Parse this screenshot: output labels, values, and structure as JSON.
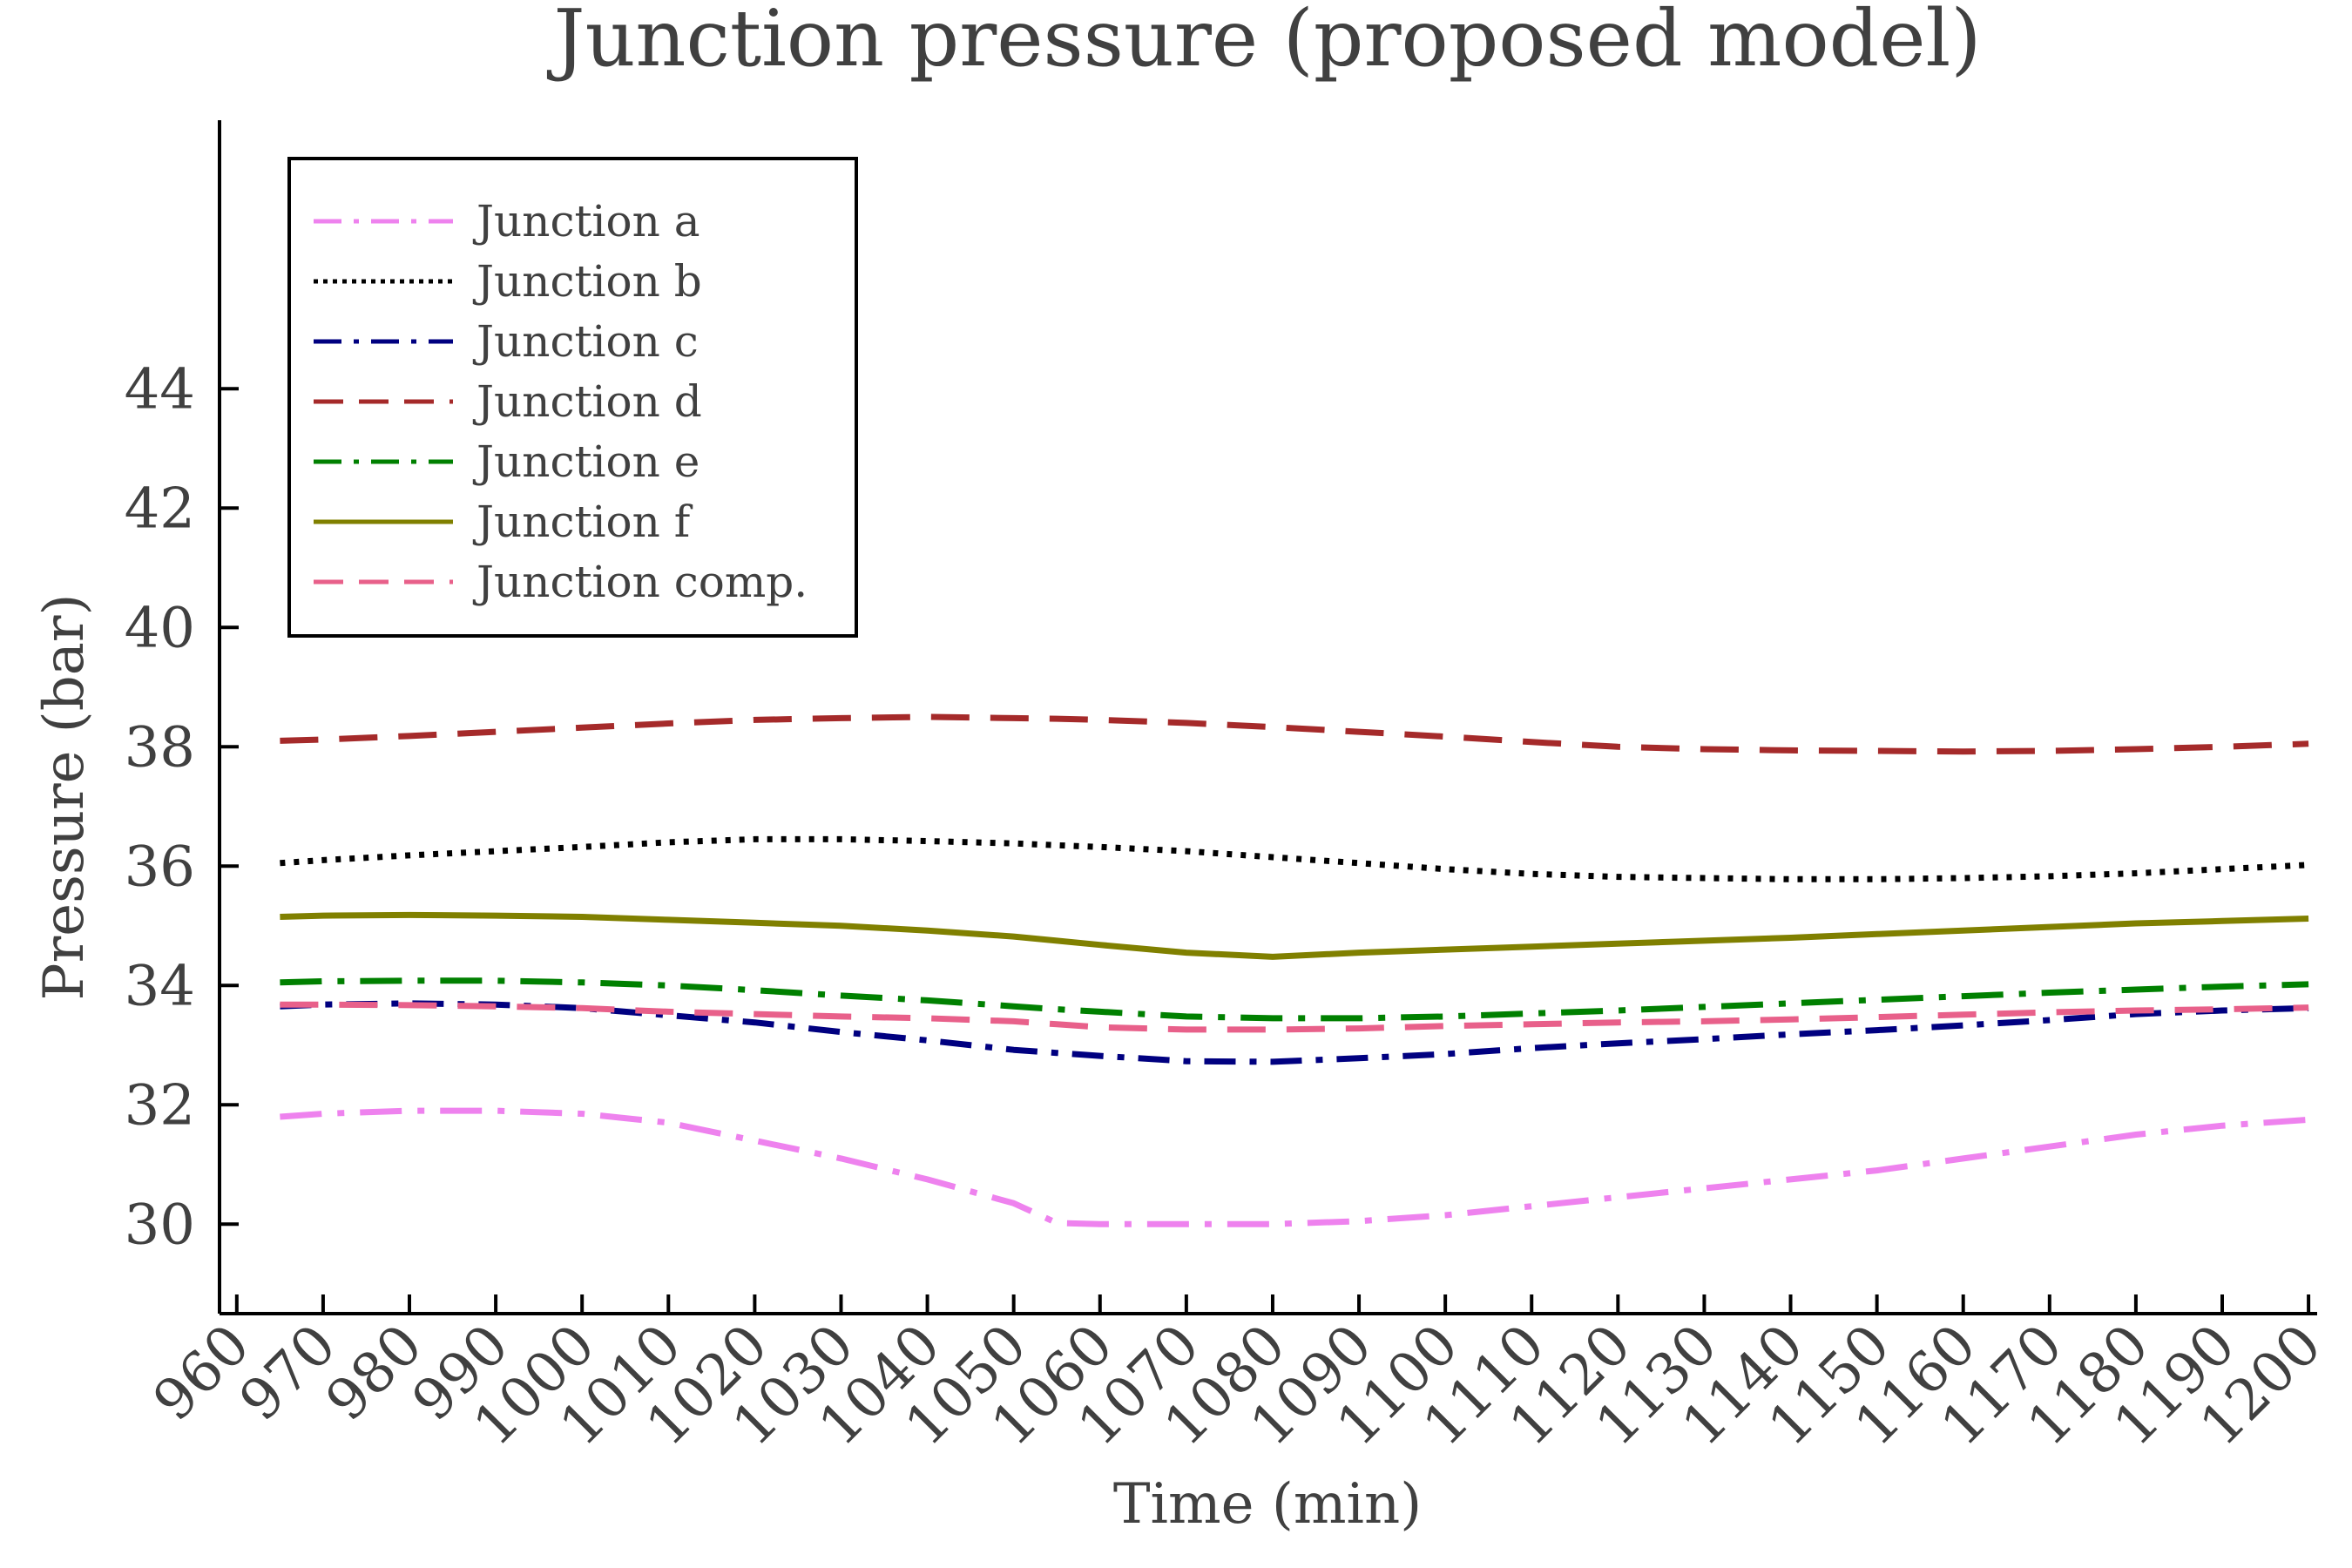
{
  "chart_data": {
    "type": "line",
    "title": "Junction pressure (proposed model)",
    "xlabel": "Time (min)",
    "ylabel": "Pressure (bar)",
    "xlim": [
      958,
      1201
    ],
    "ylim": [
      28.5,
      48.5
    ],
    "xticks": [
      960,
      970,
      980,
      990,
      1000,
      1010,
      1020,
      1030,
      1040,
      1050,
      1060,
      1070,
      1080,
      1090,
      1100,
      1110,
      1120,
      1130,
      1140,
      1150,
      1160,
      1170,
      1180,
      1190,
      1200
    ],
    "yticks": [
      30,
      32,
      34,
      36,
      38,
      40,
      42,
      44
    ],
    "grid": false,
    "legend_position": "top-left",
    "x": [
      965,
      970,
      980,
      990,
      1000,
      1010,
      1020,
      1030,
      1040,
      1050,
      1055,
      1060,
      1070,
      1080,
      1090,
      1100,
      1110,
      1120,
      1130,
      1140,
      1150,
      1160,
      1170,
      1180,
      1190,
      1200
    ],
    "series": [
      {
        "name": "Junction a",
        "color": "#ee82ee",
        "dash": "dashdot",
        "values": [
          31.8,
          31.85,
          31.9,
          31.9,
          31.85,
          31.7,
          31.4,
          31.1,
          30.75,
          30.35,
          30.02,
          30.0,
          30.0,
          30.0,
          30.05,
          30.15,
          30.3,
          30.45,
          30.6,
          30.75,
          30.9,
          31.1,
          31.3,
          31.5,
          31.65,
          31.75
        ]
      },
      {
        "name": "Junction b",
        "color": "#000000",
        "dash": "dotted",
        "values": [
          36.05,
          36.1,
          36.18,
          36.25,
          36.32,
          36.4,
          36.45,
          36.45,
          36.42,
          36.38,
          36.35,
          36.32,
          36.25,
          36.15,
          36.05,
          35.95,
          35.87,
          35.82,
          35.8,
          35.78,
          35.78,
          35.8,
          35.83,
          35.88,
          35.95,
          36.02
        ]
      },
      {
        "name": "Junction c",
        "color": "#000080",
        "dash": "dashdot2",
        "values": [
          33.65,
          33.68,
          33.7,
          33.68,
          33.62,
          33.5,
          33.38,
          33.22,
          33.08,
          32.92,
          32.87,
          32.82,
          32.73,
          32.72,
          32.78,
          32.85,
          32.95,
          33.03,
          33.1,
          33.18,
          33.25,
          33.33,
          33.42,
          33.52,
          33.58,
          33.62
        ]
      },
      {
        "name": "Junction d",
        "color": "#a52a2a",
        "dash": "dashed",
        "values": [
          38.1,
          38.12,
          38.18,
          38.25,
          38.32,
          38.39,
          38.45,
          38.48,
          38.5,
          38.48,
          38.47,
          38.45,
          38.4,
          38.33,
          38.25,
          38.17,
          38.08,
          38.0,
          37.96,
          37.94,
          37.93,
          37.92,
          37.93,
          37.96,
          38.0,
          38.05
        ]
      },
      {
        "name": "Junction e",
        "color": "#008000",
        "dash": "dashdot",
        "values": [
          34.05,
          34.07,
          34.08,
          34.08,
          34.05,
          34.0,
          33.92,
          33.83,
          33.75,
          33.65,
          33.6,
          33.56,
          33.48,
          33.45,
          33.45,
          33.48,
          33.53,
          33.58,
          33.64,
          33.7,
          33.76,
          33.82,
          33.88,
          33.93,
          33.98,
          34.02
        ]
      },
      {
        "name": "Junction f",
        "color": "#808000",
        "dash": "solid",
        "values": [
          35.15,
          35.17,
          35.18,
          35.17,
          35.15,
          35.1,
          35.05,
          35.0,
          34.92,
          34.82,
          34.75,
          34.68,
          34.55,
          34.48,
          34.55,
          34.6,
          34.65,
          34.7,
          34.75,
          34.8,
          34.86,
          34.92,
          34.98,
          35.04,
          35.08,
          35.12
        ]
      },
      {
        "name": "Junction comp.",
        "color": "#e8608a",
        "dash": "dashed",
        "values": [
          33.68,
          33.68,
          33.67,
          33.65,
          33.62,
          33.56,
          33.52,
          33.48,
          33.45,
          33.4,
          33.35,
          33.3,
          33.26,
          33.26,
          33.28,
          33.32,
          33.35,
          33.38,
          33.4,
          33.43,
          33.47,
          33.51,
          33.55,
          33.58,
          33.6,
          33.63
        ]
      }
    ]
  }
}
